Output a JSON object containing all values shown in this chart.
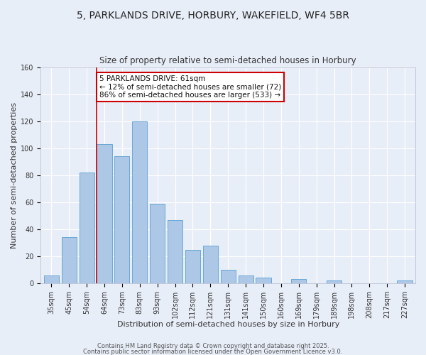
{
  "title": "5, PARKLANDS DRIVE, HORBURY, WAKEFIELD, WF4 5BR",
  "subtitle": "Size of property relative to semi-detached houses in Horbury",
  "xlabel": "Distribution of semi-detached houses by size in Horbury",
  "ylabel": "Number of semi-detached properties",
  "bar_labels": [
    "35sqm",
    "45sqm",
    "54sqm",
    "64sqm",
    "73sqm",
    "83sqm",
    "93sqm",
    "102sqm",
    "112sqm",
    "121sqm",
    "131sqm",
    "141sqm",
    "150sqm",
    "160sqm",
    "169sqm",
    "179sqm",
    "189sqm",
    "198sqm",
    "208sqm",
    "217sqm",
    "227sqm"
  ],
  "bar_values": [
    6,
    34,
    82,
    103,
    94,
    120,
    59,
    47,
    25,
    28,
    10,
    6,
    4,
    0,
    3,
    0,
    2,
    0,
    0,
    0,
    2
  ],
  "bar_color": "#adc8e6",
  "bar_edge_color": "#5a9fd4",
  "background_color": "#e8eef8",
  "grid_color": "#ffffff",
  "property_line_bin_index": 3,
  "annotation_title": "5 PARKLANDS DRIVE: 61sqm",
  "annotation_line1": "← 12% of semi-detached houses are smaller (72)",
  "annotation_line2": "86% of semi-detached houses are larger (533) →",
  "annotation_box_color": "#ffffff",
  "annotation_border_color": "#cc0000",
  "ylim": [
    0,
    160
  ],
  "yticks": [
    0,
    20,
    40,
    60,
    80,
    100,
    120,
    140,
    160
  ],
  "title_fontsize": 10,
  "subtitle_fontsize": 8.5,
  "xlabel_fontsize": 8,
  "ylabel_fontsize": 8,
  "tick_fontsize": 7,
  "annotation_fontsize": 7.5,
  "footer_fontsize": 6,
  "footer_line1": "Contains HM Land Registry data © Crown copyright and database right 2025.",
  "footer_line2": "Contains public sector information licensed under the Open Government Licence v3.0."
}
